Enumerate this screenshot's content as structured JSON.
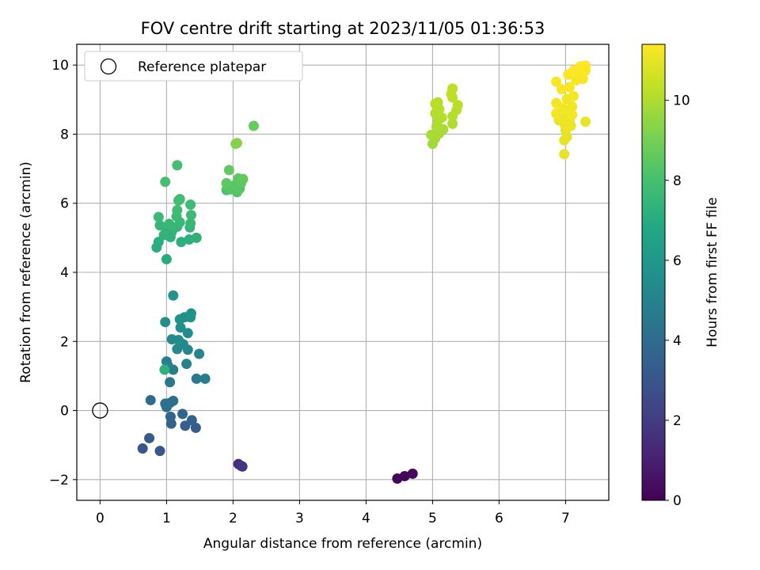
{
  "chart_data": {
    "type": "scatter",
    "title": "FOV centre drift starting at 2023/11/05 01:36:53",
    "xlabel": "Angular distance from reference (arcmin)",
    "ylabel": "Rotation from reference (arcmin)",
    "xlim": [
      -0.35,
      7.65
    ],
    "ylim": [
      -2.6,
      10.6
    ],
    "xticks": [
      0,
      1,
      2,
      3,
      4,
      5,
      6,
      7
    ],
    "yticks": [
      -2,
      0,
      2,
      4,
      6,
      8,
      10
    ],
    "xtick_labels": [
      "0",
      "1",
      "2",
      "3",
      "4",
      "5",
      "6",
      "7"
    ],
    "ytick_labels": [
      "−2",
      "0",
      "2",
      "4",
      "6",
      "8",
      "10"
    ],
    "grid": true,
    "legend": {
      "position": "top-left",
      "entries": [
        {
          "label": "Reference platepar",
          "marker": "open-circle"
        }
      ]
    },
    "reference_point": {
      "x": 0,
      "y": 0
    },
    "colorbar": {
      "label": "Hours from first FF file",
      "colormap": "viridis",
      "range": [
        0,
        11.4
      ],
      "ticks": [
        0,
        2,
        4,
        6,
        8,
        10
      ],
      "tick_labels": [
        "0",
        "2",
        "4",
        "6",
        "8",
        "10"
      ]
    },
    "points": [
      {
        "x": 4.47,
        "y": -1.97,
        "c": 0.1
      },
      {
        "x": 4.58,
        "y": -1.9,
        "c": 0.2
      },
      {
        "x": 4.7,
        "y": -1.83,
        "c": 0.3
      },
      {
        "x": 2.08,
        "y": -1.55,
        "c": 1.5
      },
      {
        "x": 2.12,
        "y": -1.6,
        "c": 1.6
      },
      {
        "x": 2.14,
        "y": -1.62,
        "c": 1.7
      },
      {
        "x": 0.64,
        "y": -1.1,
        "c": 3.0
      },
      {
        "x": 0.9,
        "y": -1.17,
        "c": 3.1
      },
      {
        "x": 0.74,
        "y": -0.8,
        "c": 3.2
      },
      {
        "x": 1.44,
        "y": -0.5,
        "c": 3.3
      },
      {
        "x": 1.28,
        "y": -0.44,
        "c": 3.4
      },
      {
        "x": 1.38,
        "y": -0.28,
        "c": 3.5
      },
      {
        "x": 1.07,
        "y": -0.38,
        "c": 3.6
      },
      {
        "x": 1.06,
        "y": -0.18,
        "c": 3.7
      },
      {
        "x": 1.24,
        "y": -0.1,
        "c": 3.8
      },
      {
        "x": 0.76,
        "y": 0.3,
        "c": 3.9
      },
      {
        "x": 1.0,
        "y": 0.1,
        "c": 4.0
      },
      {
        "x": 1.05,
        "y": 0.22,
        "c": 4.1
      },
      {
        "x": 1.1,
        "y": 0.28,
        "c": 4.2
      },
      {
        "x": 0.98,
        "y": 0.2,
        "c": 4.2
      },
      {
        "x": 1.05,
        "y": 0.82,
        "c": 4.5
      },
      {
        "x": 1.45,
        "y": 0.92,
        "c": 4.6
      },
      {
        "x": 1.58,
        "y": 0.92,
        "c": 4.7
      },
      {
        "x": 1.1,
        "y": 1.18,
        "c": 4.8
      },
      {
        "x": 1.0,
        "y": 1.42,
        "c": 4.9
      },
      {
        "x": 1.3,
        "y": 1.35,
        "c": 5.0
      },
      {
        "x": 1.02,
        "y": 1.3,
        "c": 5.0
      },
      {
        "x": 1.49,
        "y": 1.64,
        "c": 5.1
      },
      {
        "x": 1.32,
        "y": 1.76,
        "c": 5.2
      },
      {
        "x": 1.16,
        "y": 1.78,
        "c": 5.3
      },
      {
        "x": 1.25,
        "y": 1.92,
        "c": 5.3
      },
      {
        "x": 1.08,
        "y": 2.06,
        "c": 5.4
      },
      {
        "x": 1.18,
        "y": 2.04,
        "c": 5.5
      },
      {
        "x": 1.32,
        "y": 2.24,
        "c": 5.5
      },
      {
        "x": 1.21,
        "y": 2.4,
        "c": 5.6
      },
      {
        "x": 0.98,
        "y": 2.56,
        "c": 5.6
      },
      {
        "x": 1.2,
        "y": 2.64,
        "c": 5.7
      },
      {
        "x": 1.27,
        "y": 2.7,
        "c": 5.7
      },
      {
        "x": 1.36,
        "y": 2.7,
        "c": 5.8
      },
      {
        "x": 1.37,
        "y": 2.81,
        "c": 5.8
      },
      {
        "x": 1.1,
        "y": 3.33,
        "c": 5.9
      },
      {
        "x": 0.97,
        "y": 1.18,
        "c": 7.3
      },
      {
        "x": 1.0,
        "y": 4.38,
        "c": 7.0
      },
      {
        "x": 0.85,
        "y": 4.72,
        "c": 7.1
      },
      {
        "x": 0.88,
        "y": 4.88,
        "c": 7.1
      },
      {
        "x": 1.22,
        "y": 4.88,
        "c": 7.2
      },
      {
        "x": 1.34,
        "y": 4.95,
        "c": 7.2
      },
      {
        "x": 1.45,
        "y": 5.0,
        "c": 7.3
      },
      {
        "x": 1.06,
        "y": 5.02,
        "c": 7.3
      },
      {
        "x": 0.96,
        "y": 5.08,
        "c": 7.4
      },
      {
        "x": 1.08,
        "y": 5.18,
        "c": 7.4
      },
      {
        "x": 1.0,
        "y": 5.22,
        "c": 7.4
      },
      {
        "x": 1.16,
        "y": 5.32,
        "c": 7.5
      },
      {
        "x": 1.35,
        "y": 5.3,
        "c": 7.5
      },
      {
        "x": 0.9,
        "y": 5.36,
        "c": 7.5
      },
      {
        "x": 1.04,
        "y": 5.4,
        "c": 7.6
      },
      {
        "x": 1.2,
        "y": 5.45,
        "c": 7.6
      },
      {
        "x": 1.36,
        "y": 5.42,
        "c": 7.6
      },
      {
        "x": 0.88,
        "y": 5.6,
        "c": 7.7
      },
      {
        "x": 1.15,
        "y": 5.62,
        "c": 7.7
      },
      {
        "x": 1.37,
        "y": 5.66,
        "c": 7.7
      },
      {
        "x": 1.16,
        "y": 5.8,
        "c": 7.8
      },
      {
        "x": 1.36,
        "y": 5.96,
        "c": 7.8
      },
      {
        "x": 1.18,
        "y": 6.08,
        "c": 7.9
      },
      {
        "x": 1.2,
        "y": 6.12,
        "c": 7.9
      },
      {
        "x": 0.98,
        "y": 6.62,
        "c": 8.0
      },
      {
        "x": 1.16,
        "y": 7.1,
        "c": 8.0
      },
      {
        "x": 1.9,
        "y": 6.38,
        "c": 8.2
      },
      {
        "x": 1.96,
        "y": 6.4,
        "c": 8.3
      },
      {
        "x": 2.06,
        "y": 6.32,
        "c": 8.3
      },
      {
        "x": 2.1,
        "y": 6.42,
        "c": 8.4
      },
      {
        "x": 1.92,
        "y": 6.5,
        "c": 8.4
      },
      {
        "x": 2.02,
        "y": 6.52,
        "c": 8.4
      },
      {
        "x": 2.12,
        "y": 6.58,
        "c": 8.5
      },
      {
        "x": 1.9,
        "y": 6.58,
        "c": 8.5
      },
      {
        "x": 2.08,
        "y": 6.72,
        "c": 8.5
      },
      {
        "x": 2.15,
        "y": 6.7,
        "c": 8.6
      },
      {
        "x": 1.94,
        "y": 6.96,
        "c": 8.6
      },
      {
        "x": 2.31,
        "y": 8.24,
        "c": 8.7
      },
      {
        "x": 2.04,
        "y": 7.72,
        "c": 9.2
      },
      {
        "x": 2.06,
        "y": 7.74,
        "c": 9.3
      },
      {
        "x": 5.0,
        "y": 7.72,
        "c": 9.8
      },
      {
        "x": 5.04,
        "y": 7.88,
        "c": 9.8
      },
      {
        "x": 4.98,
        "y": 7.98,
        "c": 9.9
      },
      {
        "x": 5.1,
        "y": 8.02,
        "c": 9.9
      },
      {
        "x": 5.16,
        "y": 8.14,
        "c": 9.9
      },
      {
        "x": 5.06,
        "y": 8.22,
        "c": 10.0
      },
      {
        "x": 5.3,
        "y": 8.3,
        "c": 10.0
      },
      {
        "x": 5.08,
        "y": 8.38,
        "c": 10.0
      },
      {
        "x": 5.14,
        "y": 8.48,
        "c": 10.1
      },
      {
        "x": 5.3,
        "y": 8.52,
        "c": 10.1
      },
      {
        "x": 5.04,
        "y": 8.6,
        "c": 10.1
      },
      {
        "x": 5.36,
        "y": 8.7,
        "c": 10.1
      },
      {
        "x": 5.1,
        "y": 8.72,
        "c": 10.2
      },
      {
        "x": 5.38,
        "y": 8.84,
        "c": 10.2
      },
      {
        "x": 5.04,
        "y": 8.88,
        "c": 10.2
      },
      {
        "x": 5.08,
        "y": 8.92,
        "c": 10.2
      },
      {
        "x": 5.3,
        "y": 9.06,
        "c": 10.2
      },
      {
        "x": 5.28,
        "y": 9.16,
        "c": 10.3
      },
      {
        "x": 5.3,
        "y": 9.32,
        "c": 10.3
      },
      {
        "x": 6.98,
        "y": 7.42,
        "c": 11.0
      },
      {
        "x": 6.98,
        "y": 7.82,
        "c": 11.0
      },
      {
        "x": 7.02,
        "y": 7.92,
        "c": 11.0
      },
      {
        "x": 7.0,
        "y": 8.12,
        "c": 11.0
      },
      {
        "x": 7.04,
        "y": 8.2,
        "c": 11.1
      },
      {
        "x": 7.08,
        "y": 8.24,
        "c": 11.1
      },
      {
        "x": 6.98,
        "y": 8.3,
        "c": 11.1
      },
      {
        "x": 7.3,
        "y": 8.36,
        "c": 11.1
      },
      {
        "x": 6.9,
        "y": 8.4,
        "c": 11.1
      },
      {
        "x": 7.06,
        "y": 8.42,
        "c": 11.1
      },
      {
        "x": 7.0,
        "y": 8.5,
        "c": 11.1
      },
      {
        "x": 7.1,
        "y": 8.56,
        "c": 11.2
      },
      {
        "x": 6.86,
        "y": 8.6,
        "c": 11.2
      },
      {
        "x": 7.04,
        "y": 8.7,
        "c": 11.2
      },
      {
        "x": 6.96,
        "y": 8.76,
        "c": 11.2
      },
      {
        "x": 7.1,
        "y": 8.8,
        "c": 11.2
      },
      {
        "x": 6.86,
        "y": 8.9,
        "c": 11.2
      },
      {
        "x": 7.02,
        "y": 9.02,
        "c": 11.2
      },
      {
        "x": 7.12,
        "y": 9.1,
        "c": 11.2
      },
      {
        "x": 6.94,
        "y": 9.3,
        "c": 11.3
      },
      {
        "x": 7.06,
        "y": 9.36,
        "c": 11.3
      },
      {
        "x": 6.86,
        "y": 9.52,
        "c": 11.3
      },
      {
        "x": 7.16,
        "y": 9.56,
        "c": 11.3
      },
      {
        "x": 7.26,
        "y": 9.6,
        "c": 11.3
      },
      {
        "x": 7.04,
        "y": 9.72,
        "c": 11.3
      },
      {
        "x": 7.2,
        "y": 9.76,
        "c": 11.3
      },
      {
        "x": 7.3,
        "y": 9.84,
        "c": 11.4
      },
      {
        "x": 7.12,
        "y": 9.84,
        "c": 11.4
      },
      {
        "x": 7.22,
        "y": 9.96,
        "c": 11.4
      },
      {
        "x": 7.3,
        "y": 9.98,
        "c": 11.4
      }
    ]
  }
}
